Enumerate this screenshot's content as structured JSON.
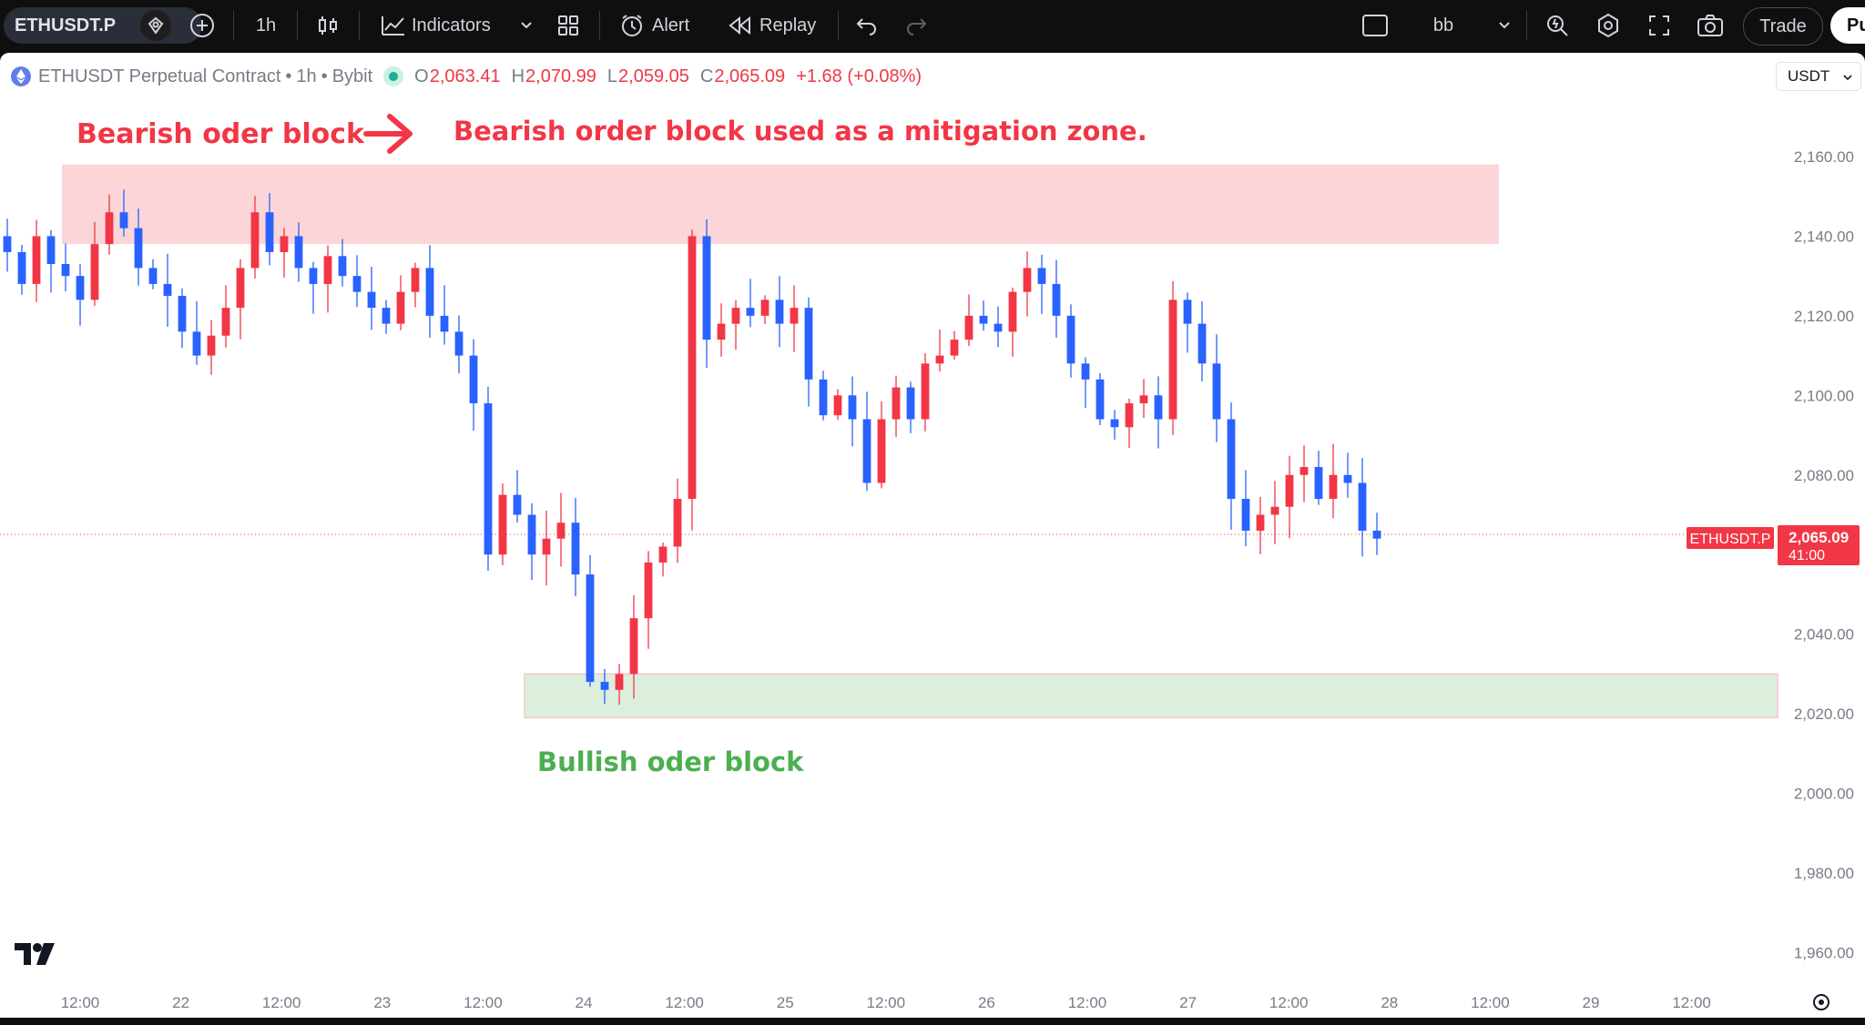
{
  "toolbar": {
    "symbol": "ETHUSDT.P",
    "interval": "1h",
    "indicators_label": "Indicators",
    "alert_label": "Alert",
    "replay_label": "Replay",
    "layout_name": "bb",
    "trade_label": "Trade",
    "publish_label": "Pu"
  },
  "legend": {
    "title": "ETHUSDT Perpetual Contract",
    "interval": "1h",
    "exchange": "Bybit",
    "o_label": "O",
    "o_value": "2,063.41",
    "h_label": "H",
    "h_value": "2,070.99",
    "l_label": "L",
    "l_value": "2,059.05",
    "c_label": "C",
    "c_value": "2,065.09",
    "change": "+1.68 (+0.08%)"
  },
  "currency": "USDT",
  "price_tag": {
    "symbol": "ETHUSDT.P",
    "price": "2,065.09",
    "countdown": "41:00"
  },
  "colors": {
    "up": "#f23645",
    "down": "#2962ff",
    "bearish_zone": "#fbd5d8",
    "bullish_zone": "#dcefdc",
    "bullish_text": "#4caf50",
    "bearish_text": "#f23645"
  },
  "chart_data": {
    "type": "candlestick",
    "y_axis": {
      "min": 1950,
      "max": 2170,
      "ticks": [
        "2,160.00",
        "2,140.00",
        "2,120.00",
        "2,100.00",
        "2,080.00",
        "2,060.00",
        "2,040.00",
        "2,020.00",
        "2,000.00",
        "1,980.00",
        "1,960.00"
      ],
      "tick_values": [
        2160,
        2140,
        2120,
        2100,
        2080,
        2060,
        2040,
        2020,
        2000,
        1980,
        1960
      ]
    },
    "x_axis": {
      "ticks": [
        "12:00",
        "22",
        "12:00",
        "23",
        "12:00",
        "24",
        "12:00",
        "25",
        "12:00",
        "26",
        "12:00",
        "27",
        "12:00",
        "28",
        "12:00",
        "29",
        "12:00"
      ]
    },
    "last_price": 2065.09,
    "zones": [
      {
        "kind": "bearish",
        "top": 2158,
        "bottom": 2138
      },
      {
        "kind": "bullish",
        "top": 2030,
        "bottom": 2019
      }
    ],
    "annotations": [
      {
        "text": "Bearish oder block",
        "color": "red"
      },
      {
        "text": "Bearish order block used as a mitigation zone.",
        "color": "red"
      },
      {
        "text": "Bullish oder block",
        "color": "green"
      }
    ],
    "close_path": [
      2136,
      2128,
      2140,
      2133,
      2130,
      2124,
      2138,
      2146,
      2142,
      2132,
      2128,
      2125,
      2116,
      2110,
      2115,
      2122,
      2132,
      2146,
      2136,
      2140,
      2132,
      2128,
      2135,
      2130,
      2126,
      2122,
      2118,
      2126,
      2132,
      2120,
      2116,
      2110,
      2098,
      2060,
      2075,
      2070,
      2060,
      2064,
      2068,
      2055,
      2028,
      2026,
      2030,
      2044,
      2058,
      2062,
      2074,
      2140,
      2114,
      2118,
      2122,
      2120,
      2124,
      2118,
      2122,
      2104,
      2095,
      2100,
      2094,
      2078,
      2094,
      2102,
      2094,
      2108,
      2110,
      2114,
      2120,
      2118,
      2116,
      2126,
      2132,
      2128,
      2120,
      2108,
      2104,
      2094,
      2092,
      2098,
      2100,
      2094,
      2124,
      2118,
      2108,
      2094,
      2074,
      2066,
      2070,
      2072,
      2080,
      2082,
      2074,
      2080,
      2078,
      2066,
      2064
    ]
  }
}
